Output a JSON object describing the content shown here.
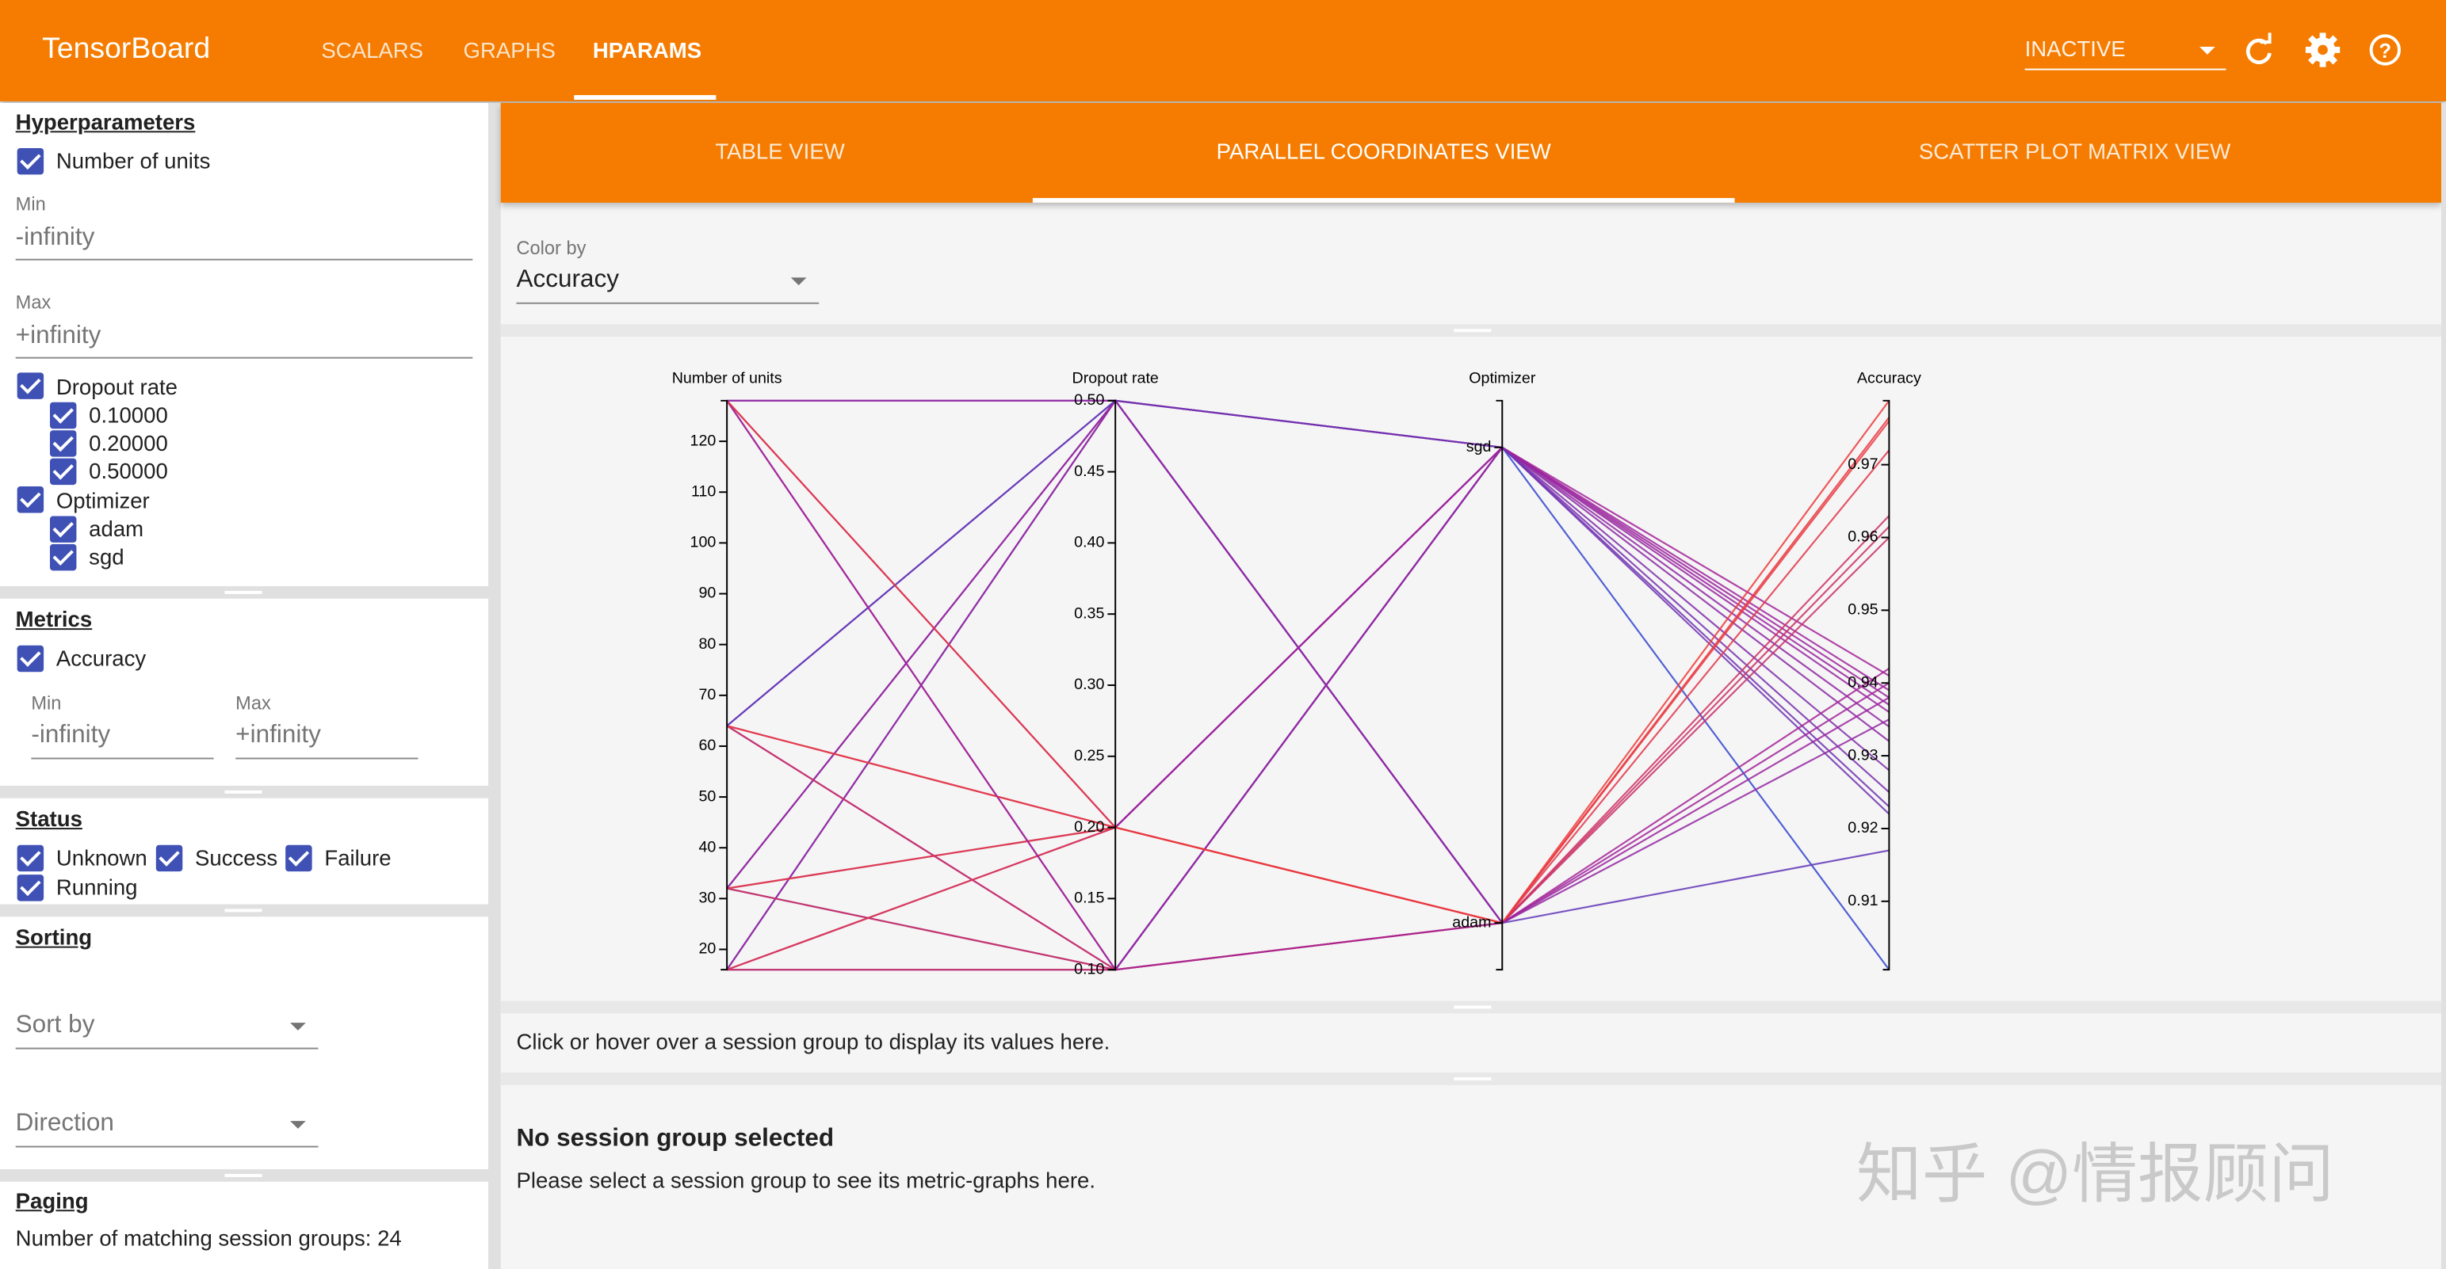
{
  "header": {
    "title": "TensorBoard",
    "nav": [
      "SCALARS",
      "GRAPHS",
      "HPARAMS"
    ],
    "run_selector": "INACTIVE"
  },
  "sidebar": {
    "hyperparameters": {
      "title": "Hyperparameters",
      "units": {
        "name": "Number of units",
        "min_label": "Min",
        "min": "-infinity",
        "max_label": "Max",
        "max": "+infinity"
      },
      "dropout": {
        "name": "Dropout rate",
        "values": [
          "0.10000",
          "0.20000",
          "0.50000"
        ]
      },
      "optimizer": {
        "name": "Optimizer",
        "values": [
          "adam",
          "sgd"
        ]
      }
    },
    "metrics": {
      "title": "Metrics",
      "name": "Accuracy",
      "min_label": "Min",
      "min": "-infinity",
      "max_label": "Max",
      "max": "+infinity"
    },
    "status": {
      "title": "Status",
      "values": [
        "Unknown",
        "Success",
        "Failure",
        "Running"
      ]
    },
    "sorting": {
      "title": "Sorting",
      "sort_by": "Sort by",
      "direction": "Direction"
    },
    "paging": {
      "title": "Paging",
      "text": "Number of matching session groups: 24"
    }
  },
  "tabs": [
    "TABLE VIEW",
    "PARALLEL COORDINATES VIEW",
    "SCATTER PLOT MATRIX VIEW"
  ],
  "color_by": {
    "label": "Color by",
    "value": "Accuracy"
  },
  "parallel_coordinates": {
    "axes": [
      {
        "name": "Number of units",
        "lim": [
          16,
          128
        ],
        "ticks": [
          20,
          30,
          40,
          50,
          60,
          70,
          80,
          90,
          100,
          110,
          120
        ]
      },
      {
        "name": "Dropout rate",
        "lim": [
          0.1,
          0.5
        ],
        "ticks": [
          {
            "value": 0.1,
            "label": "0.10"
          },
          0.15,
          {
            "value": 0.2,
            "label": "0.20"
          },
          0.25,
          {
            "value": 0.3,
            "label": "0.30"
          },
          0.35,
          {
            "value": 0.4,
            "label": "0.40"
          },
          0.45,
          {
            "value": 0.5,
            "label": "0.50"
          }
        ]
      },
      {
        "name": "Optimizer",
        "categories": [
          "sgd",
          "adam"
        ]
      },
      {
        "name": "Accuracy",
        "lim": [
          0.9006,
          0.9788
        ],
        "ticks": [
          0.91,
          0.92,
          0.93,
          0.94,
          0.95,
          0.96,
          0.97
        ]
      }
    ],
    "color_scale": [
      "#3344cc",
      "#a0249c",
      "#ee3b3b"
    ],
    "sessions": [
      {
        "units": 16,
        "dropout": 0.1,
        "optimizer": "sgd",
        "accuracy": 0.932
      },
      {
        "units": 16,
        "dropout": 0.2,
        "optimizer": "sgd",
        "accuracy": 0.939
      },
      {
        "units": 16,
        "dropout": 0.5,
        "optimizer": "sgd",
        "accuracy": 0.9006
      },
      {
        "units": 32,
        "dropout": 0.1,
        "optimizer": "sgd",
        "accuracy": 0.928
      },
      {
        "units": 32,
        "dropout": 0.2,
        "optimizer": "sgd",
        "accuracy": 0.937
      },
      {
        "units": 32,
        "dropout": 0.5,
        "optimizer": "sgd",
        "accuracy": 0.922
      },
      {
        "units": 64,
        "dropout": 0.1,
        "optimizer": "sgd",
        "accuracy": 0.936
      },
      {
        "units": 64,
        "dropout": 0.2,
        "optimizer": "sgd",
        "accuracy": 0.941
      },
      {
        "units": 64,
        "dropout": 0.5,
        "optimizer": "sgd",
        "accuracy": 0.923
      },
      {
        "units": 128,
        "dropout": 0.1,
        "optimizer": "sgd",
        "accuracy": 0.934
      },
      {
        "units": 128,
        "dropout": 0.2,
        "optimizer": "sgd",
        "accuracy": 0.938
      },
      {
        "units": 128,
        "dropout": 0.5,
        "optimizer": "sgd",
        "accuracy": 0.925
      },
      {
        "units": 16,
        "dropout": 0.1,
        "optimizer": "adam",
        "accuracy": 0.96
      },
      {
        "units": 16,
        "dropout": 0.2,
        "optimizer": "adam",
        "accuracy": 0.972
      },
      {
        "units": 16,
        "dropout": 0.5,
        "optimizer": "adam",
        "accuracy": 0.94
      },
      {
        "units": 32,
        "dropout": 0.1,
        "optimizer": "adam",
        "accuracy": 0.963
      },
      {
        "units": 32,
        "dropout": 0.2,
        "optimizer": "adam",
        "accuracy": 0.9765
      },
      {
        "units": 32,
        "dropout": 0.5,
        "optimizer": "adam",
        "accuracy": 0.938
      },
      {
        "units": 64,
        "dropout": 0.1,
        "optimizer": "adam",
        "accuracy": 0.9615
      },
      {
        "units": 64,
        "dropout": 0.2,
        "optimizer": "adam",
        "accuracy": 0.9788
      },
      {
        "units": 64,
        "dropout": 0.5,
        "optimizer": "adam",
        "accuracy": 0.917
      },
      {
        "units": 128,
        "dropout": 0.1,
        "optimizer": "adam",
        "accuracy": 0.942
      },
      {
        "units": 128,
        "dropout": 0.2,
        "optimizer": "adam",
        "accuracy": 0.976
      },
      {
        "units": 128,
        "dropout": 0.5,
        "optimizer": "adam",
        "accuracy": 0.935
      }
    ]
  },
  "info": "Click or hover over a session group to display its values here.",
  "details": {
    "title": "No session group selected",
    "text": "Please select a session group to see its metric-graphs here."
  },
  "watermark": "知乎 @情报顾问"
}
